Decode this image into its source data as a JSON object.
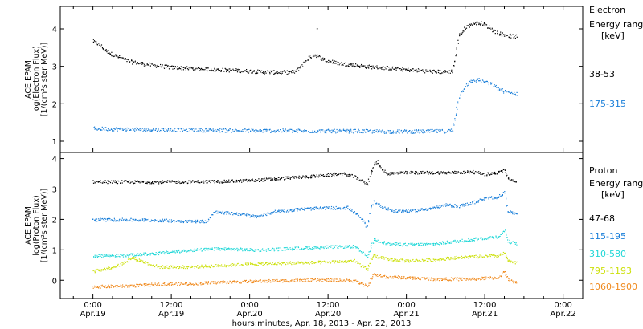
{
  "chart_data": [
    {
      "type": "scatter",
      "panel": "electron",
      "ylabel_lines": [
        "ACE EPAM",
        "log(Electron Flux)",
        "[1/(cm²s ster MeV)]"
      ],
      "ylim": [
        0.7,
        4.6
      ],
      "yticks": [
        1,
        2,
        3,
        4
      ],
      "legend_title": [
        "Electron",
        "Energy ranges",
        "[keV]"
      ],
      "series": [
        {
          "name": "38-53",
          "color": "#000000",
          "points": [
            [
              0,
              3.68
            ],
            [
              2,
              3.58
            ],
            [
              4,
              3.42
            ],
            [
              6,
              3.32
            ],
            [
              8,
              3.25
            ],
            [
              10,
              3.18
            ],
            [
              12,
              3.12
            ],
            [
              16,
              3.07
            ],
            [
              20,
              3.02
            ],
            [
              24,
              2.98
            ],
            [
              28,
              2.96
            ],
            [
              32,
              2.94
            ],
            [
              36,
              2.93
            ],
            [
              40,
              2.91
            ],
            [
              44,
              2.9
            ],
            [
              48,
              2.88
            ],
            [
              52,
              2.86
            ],
            [
              56,
              2.85
            ],
            [
              60,
              2.85
            ],
            [
              62,
              2.87
            ],
            [
              64,
              3.05
            ],
            [
              66,
              3.25
            ],
            [
              68,
              3.32
            ],
            [
              70,
              3.22
            ],
            [
              72,
              3.15
            ],
            [
              76,
              3.08
            ],
            [
              80,
              3.04
            ],
            [
              84,
              3.0
            ],
            [
              88,
              2.98
            ],
            [
              92,
              2.95
            ],
            [
              96,
              2.92
            ],
            [
              100,
              2.9
            ],
            [
              104,
              2.87
            ],
            [
              108,
              2.86
            ],
            [
              110,
              2.88
            ],
            [
              111,
              3.3
            ],
            [
              112,
              3.85
            ],
            [
              113,
              3.92
            ],
            [
              114,
              4.05
            ],
            [
              116,
              4.14
            ],
            [
              118,
              4.18
            ],
            [
              120,
              4.12
            ],
            [
              122,
              4.0
            ],
            [
              124,
              3.9
            ],
            [
              126,
              3.85
            ],
            [
              128,
              3.82
            ],
            [
              130,
              3.8
            ]
          ],
          "outliers": [
            [
              68.5,
              4.02
            ]
          ]
        },
        {
          "name": "175-315",
          "color": "#1a7fd9",
          "points": [
            [
              0,
              1.35
            ],
            [
              10,
              1.33
            ],
            [
              20,
              1.32
            ],
            [
              30,
              1.31
            ],
            [
              40,
              1.3
            ],
            [
              50,
              1.29
            ],
            [
              60,
              1.29
            ],
            [
              70,
              1.28
            ],
            [
              80,
              1.28
            ],
            [
              90,
              1.27
            ],
            [
              100,
              1.27
            ],
            [
              108,
              1.28
            ],
            [
              110,
              1.3
            ],
            [
              111,
              1.75
            ],
            [
              112,
              2.2
            ],
            [
              114,
              2.5
            ],
            [
              116,
              2.62
            ],
            [
              118,
              2.65
            ],
            [
              120,
              2.6
            ],
            [
              122,
              2.52
            ],
            [
              124,
              2.42
            ],
            [
              126,
              2.33
            ],
            [
              128,
              2.29
            ],
            [
              130,
              2.28
            ]
          ]
        }
      ]
    },
    {
      "type": "scatter",
      "panel": "proton",
      "ylabel_lines": [
        "ACE EPAM",
        "log(Proton Flux)",
        "[1/(cm²s ster MeV)]"
      ],
      "ylim": [
        -0.6,
        4.2
      ],
      "yticks": [
        0,
        1,
        2,
        3,
        4
      ],
      "legend_title": [
        "Proton",
        "Energy ranges",
        "[keV]"
      ],
      "series": [
        {
          "name": "47-68",
          "color": "#000000",
          "points": [
            [
              0,
              3.25
            ],
            [
              20,
              3.24
            ],
            [
              40,
              3.26
            ],
            [
              50,
              3.3
            ],
            [
              60,
              3.38
            ],
            [
              70,
              3.45
            ],
            [
              76,
              3.52
            ],
            [
              80,
              3.42
            ],
            [
              82,
              3.3
            ],
            [
              84,
              3.18
            ],
            [
              85,
              3.55
            ],
            [
              86,
              3.82
            ],
            [
              87,
              3.9
            ],
            [
              88,
              3.72
            ],
            [
              90,
              3.52
            ],
            [
              96,
              3.55
            ],
            [
              104,
              3.55
            ],
            [
              110,
              3.55
            ],
            [
              116,
              3.58
            ],
            [
              120,
              3.5
            ],
            [
              124,
              3.55
            ],
            [
              126,
              3.65
            ],
            [
              127,
              3.35
            ],
            [
              128,
              3.28
            ],
            [
              130,
              3.25
            ]
          ]
        },
        {
          "name": "115-195",
          "color": "#1a7fd9",
          "points": [
            [
              0,
              2.0
            ],
            [
              10,
              2.0
            ],
            [
              20,
              1.98
            ],
            [
              30,
              1.95
            ],
            [
              35,
              1.95
            ],
            [
              37,
              2.25
            ],
            [
              44,
              2.2
            ],
            [
              50,
              2.1
            ],
            [
              56,
              2.28
            ],
            [
              64,
              2.35
            ],
            [
              70,
              2.38
            ],
            [
              78,
              2.4
            ],
            [
              82,
              2.05
            ],
            [
              84,
              1.75
            ],
            [
              85,
              2.4
            ],
            [
              86,
              2.6
            ],
            [
              88,
              2.45
            ],
            [
              92,
              2.28
            ],
            [
              98,
              2.3
            ],
            [
              104,
              2.38
            ],
            [
              108,
              2.48
            ],
            [
              112,
              2.45
            ],
            [
              116,
              2.55
            ],
            [
              120,
              2.7
            ],
            [
              124,
              2.75
            ],
            [
              126,
              2.9
            ],
            [
              127,
              2.3
            ],
            [
              128,
              2.22
            ],
            [
              130,
              2.2
            ]
          ]
        },
        {
          "name": "310-580",
          "color": "#20d7d7",
          "points": [
            [
              0,
              0.82
            ],
            [
              10,
              0.83
            ],
            [
              20,
              0.9
            ],
            [
              30,
              1.0
            ],
            [
              40,
              1.05
            ],
            [
              50,
              1.0
            ],
            [
              60,
              1.05
            ],
            [
              70,
              1.1
            ],
            [
              80,
              1.12
            ],
            [
              82,
              0.95
            ],
            [
              84,
              0.8
            ],
            [
              85,
              1.1
            ],
            [
              86,
              1.35
            ],
            [
              90,
              1.22
            ],
            [
              96,
              1.18
            ],
            [
              104,
              1.2
            ],
            [
              110,
              1.28
            ],
            [
              116,
              1.35
            ],
            [
              120,
              1.4
            ],
            [
              124,
              1.45
            ],
            [
              126,
              1.65
            ],
            [
              127,
              1.3
            ],
            [
              128,
              1.25
            ],
            [
              130,
              1.22
            ]
          ]
        },
        {
          "name": "795-1193",
          "color": "#cce00a",
          "points": [
            [
              0,
              0.3
            ],
            [
              8,
              0.5
            ],
            [
              12,
              0.75
            ],
            [
              16,
              0.6
            ],
            [
              20,
              0.45
            ],
            [
              30,
              0.45
            ],
            [
              40,
              0.5
            ],
            [
              50,
              0.55
            ],
            [
              60,
              0.58
            ],
            [
              70,
              0.6
            ],
            [
              80,
              0.65
            ],
            [
              82,
              0.5
            ],
            [
              84,
              0.35
            ],
            [
              85,
              0.7
            ],
            [
              86,
              0.82
            ],
            [
              90,
              0.7
            ],
            [
              96,
              0.65
            ],
            [
              104,
              0.68
            ],
            [
              110,
              0.75
            ],
            [
              116,
              0.78
            ],
            [
              120,
              0.8
            ],
            [
              124,
              0.82
            ],
            [
              126,
              0.9
            ],
            [
              127,
              0.65
            ],
            [
              128,
              0.6
            ],
            [
              130,
              0.58
            ]
          ]
        },
        {
          "name": "1060-1900",
          "color": "#f08a1e",
          "points": [
            [
              0,
              -0.2
            ],
            [
              10,
              -0.18
            ],
            [
              20,
              -0.12
            ],
            [
              30,
              -0.1
            ],
            [
              40,
              -0.05
            ],
            [
              50,
              -0.02
            ],
            [
              60,
              0.0
            ],
            [
              70,
              0.02
            ],
            [
              80,
              0.0
            ],
            [
              82,
              -0.1
            ],
            [
              84,
              -0.2
            ],
            [
              85,
              0.05
            ],
            [
              86,
              0.2
            ],
            [
              90,
              0.12
            ],
            [
              96,
              0.1
            ],
            [
              104,
              0.05
            ],
            [
              110,
              0.05
            ],
            [
              116,
              0.05
            ],
            [
              120,
              0.08
            ],
            [
              124,
              0.1
            ],
            [
              126,
              0.3
            ],
            [
              127,
              0.05
            ],
            [
              128,
              -0.02
            ],
            [
              130,
              -0.05
            ]
          ]
        }
      ]
    }
  ],
  "x_axis": {
    "xlim": [
      -10,
      150
    ],
    "xlabel": "hours:minutes, Apr. 18, 2013 - Apr. 22, 2013",
    "ticks": [
      {
        "hour": 0,
        "time": "0:00",
        "date": "Apr.19"
      },
      {
        "hour": 24,
        "time": "12:00",
        "date": "Apr.19"
      },
      {
        "hour": 48,
        "time": "0:00",
        "date": "Apr.20"
      },
      {
        "hour": 72,
        "time": "12:00",
        "date": "Apr.20"
      },
      {
        "hour": 96,
        "time": "0:00",
        "date": "Apr.21"
      },
      {
        "hour": 120,
        "time": "12:00",
        "date": "Apr.21"
      },
      {
        "hour": 144,
        "time": "0:00",
        "date": "Apr.22"
      }
    ]
  }
}
